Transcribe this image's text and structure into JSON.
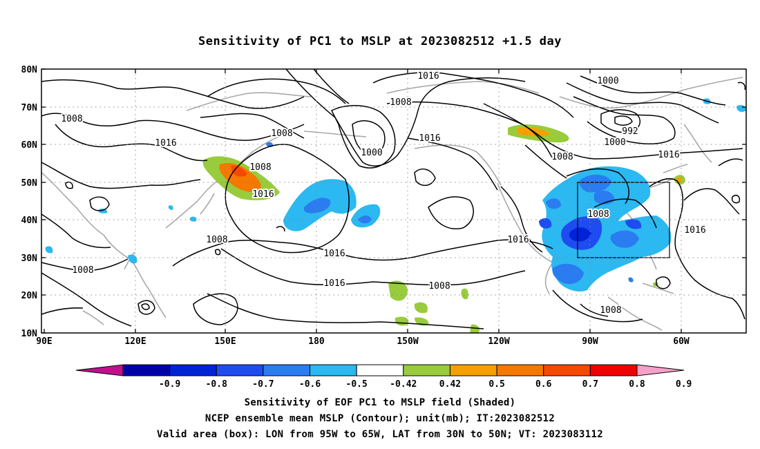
{
  "title": "Sensitivity of PC1 to MSLP at 2023082512 +1.5 day",
  "axes": {
    "lat_labels": [
      "80N",
      "70N",
      "60N",
      "50N",
      "40N",
      "30N",
      "20N",
      "10N"
    ],
    "lon_labels": [
      "90E",
      "120E",
      "150E",
      "180",
      "150W",
      "120W",
      "90W",
      "60W"
    ]
  },
  "contour_labels": [
    "1016",
    "1000",
    "1008",
    "992",
    "1000",
    "1008",
    "1016",
    "1008",
    "1016",
    "1008",
    "1000",
    "1016",
    "1008",
    "1016",
    "1008",
    "1016",
    "1008",
    "1016",
    "1016",
    "1016",
    "1008",
    "1008",
    "1008"
  ],
  "colorbar": {
    "labels": [
      "-0.9",
      "-0.8",
      "-0.7",
      "-0.6",
      "-0.5",
      "-0.42",
      "0.42",
      "0.5",
      "0.6",
      "0.7",
      "0.8",
      "0.9"
    ],
    "colors": [
      "#c0108c",
      "#0000a8",
      "#0022d8",
      "#1e4cf0",
      "#2a7cf0",
      "#2cb8f0",
      "#ffffff",
      "#98cc3c",
      "#f5a000",
      "#f57800",
      "#f54800",
      "#f00000",
      "#f5a0c8"
    ]
  },
  "captions": {
    "line1": "Sensitivity of EOF PC1 to MSLP field (Shaded)",
    "line2": "NCEP ensemble mean MSLP (Contour); unit(mb); IT:2023082512",
    "line3": "Valid area (box): LON from 95W to 65W, LAT from 30N to 50N; VT: 2023083112"
  },
  "valid_box": {
    "lon": [
      "95W",
      "65W"
    ],
    "lat": [
      "30N",
      "50N"
    ]
  }
}
